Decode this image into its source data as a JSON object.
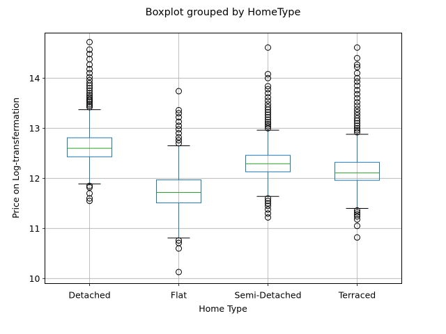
{
  "chart_data": {
    "type": "boxplot",
    "title": "Boxplot grouped by HomeType",
    "xlabel": "Home Type",
    "ylabel": "Price on Log-transfermation",
    "ylim": [
      9.9,
      14.9
    ],
    "yticks": [
      10,
      11,
      12,
      13,
      14
    ],
    "ytick_labels": [
      "10",
      "11",
      "12",
      "13",
      "14"
    ],
    "grid": true,
    "categories": [
      "Detached",
      "Flat",
      "Semi-Detached",
      "Terraced"
    ],
    "box_color": "#1f77b4",
    "median_color": "#2ca02c",
    "series": [
      {
        "category": "Detached",
        "whisker_low": 11.89,
        "q1": 12.43,
        "median": 12.6,
        "q3": 12.81,
        "whisker_high": 13.37,
        "outliers_high": [
          13.42,
          13.45,
          13.48,
          13.52,
          13.55,
          13.58,
          13.62,
          13.66,
          13.7,
          13.75,
          13.8,
          13.85,
          13.9,
          13.96,
          14.02,
          14.1,
          14.18,
          14.27,
          14.38,
          14.48,
          14.57,
          14.72
        ],
        "outliers_low": [
          11.85,
          11.82,
          11.7,
          11.6,
          11.55
        ]
      },
      {
        "category": "Flat",
        "whisker_low": 10.81,
        "q1": 11.51,
        "median": 11.72,
        "q3": 11.97,
        "whisker_high": 12.65,
        "outliers_high": [
          12.7,
          12.76,
          12.82,
          12.9,
          12.98,
          13.05,
          13.13,
          13.22,
          13.3,
          13.36,
          13.74
        ],
        "outliers_low": [
          10.76,
          10.71,
          10.6,
          10.13
        ]
      },
      {
        "category": "Semi-Detached",
        "whisker_low": 11.64,
        "q1": 12.13,
        "median": 12.29,
        "q3": 12.46,
        "whisker_high": 12.96,
        "outliers_high": [
          13.0,
          13.04,
          13.08,
          13.12,
          13.17,
          13.22,
          13.27,
          13.32,
          13.37,
          13.42,
          13.48,
          13.55,
          13.62,
          13.7,
          13.78,
          13.84,
          14.0,
          14.08,
          14.61
        ],
        "outliers_low": [
          11.6,
          11.55,
          11.5,
          11.45,
          11.38,
          11.3,
          11.22
        ]
      },
      {
        "category": "Terraced",
        "whisker_low": 11.4,
        "q1": 11.96,
        "median": 12.11,
        "q3": 12.32,
        "whisker_high": 12.88,
        "outliers_high": [
          12.92,
          12.96,
          13.0,
          13.05,
          13.1,
          13.15,
          13.2,
          13.26,
          13.32,
          13.38,
          13.45,
          13.52,
          13.6,
          13.68,
          13.76,
          13.85,
          13.93,
          14.0,
          14.1,
          14.22,
          14.27,
          14.4,
          14.61
        ],
        "outliers_low": [
          11.36,
          11.32,
          11.28,
          11.24,
          11.18,
          11.05,
          10.82
        ]
      }
    ]
  }
}
